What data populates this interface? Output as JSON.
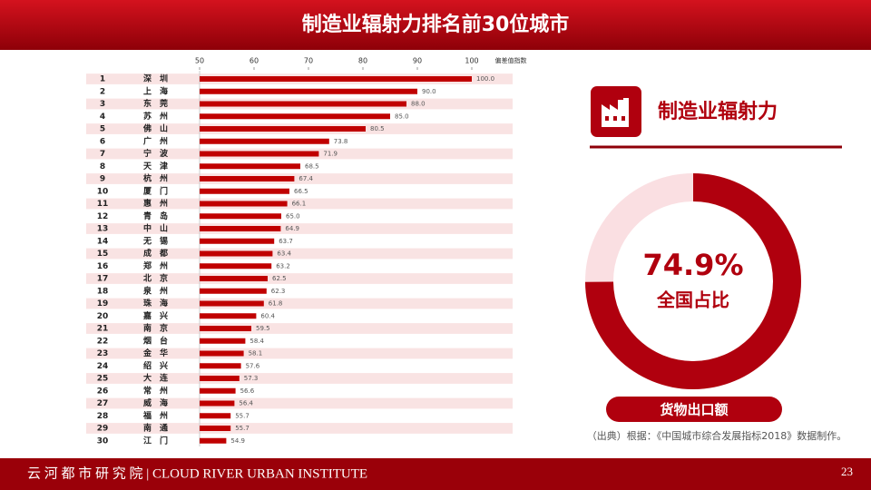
{
  "header": {
    "title": "制造业辐射力排名前30位城市"
  },
  "panel": {
    "heading": "制造业辐射力"
  },
  "chart_data": [
    {
      "type": "hbar",
      "x_label": "偏差值指数",
      "xlim": [
        50,
        100
      ],
      "xticks": [
        50,
        60,
        70,
        80,
        90,
        100
      ],
      "color": "#c00000",
      "ranks": [
        1,
        2,
        3,
        4,
        5,
        6,
        7,
        8,
        9,
        10,
        11,
        12,
        13,
        14,
        15,
        16,
        17,
        18,
        19,
        20,
        21,
        22,
        23,
        24,
        25,
        26,
        27,
        28,
        29,
        30
      ],
      "categories": [
        "深圳",
        "上海",
        "东莞",
        "苏州",
        "佛山",
        "广州",
        "宁波",
        "天津",
        "杭州",
        "厦门",
        "惠州",
        "青岛",
        "中山",
        "无锡",
        "成都",
        "郑州",
        "北京",
        "泉州",
        "珠海",
        "嘉兴",
        "南京",
        "烟台",
        "金华",
        "绍兴",
        "大连",
        "常州",
        "威海",
        "福州",
        "南通",
        "江门"
      ],
      "values": [
        100.0,
        90.0,
        88.0,
        85.0,
        80.5,
        73.8,
        71.9,
        68.5,
        67.4,
        66.5,
        66.1,
        65.0,
        64.9,
        63.7,
        63.4,
        63.2,
        62.5,
        62.3,
        61.8,
        60.4,
        59.5,
        58.4,
        58.1,
        57.6,
        57.3,
        56.6,
        56.4,
        55.7,
        55.7,
        54.9
      ],
      "value_labels": [
        "100.0",
        "90.0",
        "88.0",
        "85.0",
        "80.5",
        "73.8",
        "71.9",
        "68.5",
        "67.4",
        "66.5",
        "66.1",
        "65.0",
        "64.9",
        "63.7",
        "63.4",
        "63.2",
        "62.5",
        "62.3",
        "61.8",
        "60.4",
        "59.5",
        "58.4",
        "58.1",
        "57.6",
        "57.3",
        "56.6",
        "56.4",
        "55.7",
        "55.7",
        "54.9"
      ]
    },
    {
      "type": "donut",
      "title": "货物出口额",
      "subtitle": "全国占比",
      "values": [
        74.9
      ],
      "value_labels": [
        "74.9%"
      ],
      "color": "#b0000e"
    }
  ],
  "source": "（出典）根据：《中国城市综合发展指标2018》数据制作。",
  "footer": {
    "text": "云 河 都 市 研 究 院 | CLOUD RIVER URBAN INSTITUTE",
    "page": 23
  }
}
